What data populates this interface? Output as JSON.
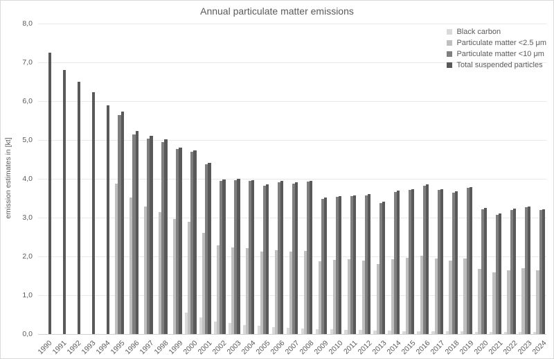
{
  "chart_data": {
    "type": "bar",
    "title": "Annual particulate matter emissions",
    "xlabel": "",
    "ylabel": "emission estimates in [kt]",
    "ylim": [
      0,
      8
    ],
    "y_tick_step": 1,
    "y_tick_labels": [
      "0,0",
      "1,0",
      "2,0",
      "3,0",
      "4,0",
      "5,0",
      "6,0",
      "7,0",
      "8,0"
    ],
    "grid": true,
    "legend_position": "top-right",
    "categories": [
      "1990",
      "1991",
      "1992",
      "1993",
      "1994",
      "1995",
      "1996",
      "1997",
      "1998",
      "1999",
      "2000",
      "2001",
      "2002",
      "2003",
      "2004",
      "2005",
      "2006",
      "2007",
      "2008",
      "2009",
      "2010",
      "2011",
      "2012",
      "2013",
      "2014",
      "2015",
      "2016",
      "2017",
      "2018",
      "2019",
      "2020",
      "2021",
      "2022",
      "2023",
      "2024"
    ],
    "series": [
      {
        "key": "black-carbon",
        "name": "Black carbon",
        "color": "#d9d9d9",
        "values": [
          null,
          null,
          null,
          null,
          null,
          null,
          null,
          null,
          null,
          null,
          0.55,
          0.42,
          0.32,
          0.28,
          0.24,
          0.21,
          0.18,
          0.16,
          0.14,
          0.12,
          0.12,
          0.11,
          0.1,
          0.09,
          0.09,
          0.08,
          0.08,
          0.08,
          0.07,
          0.07,
          0.06,
          0.06,
          0.06,
          0.06,
          0.05
        ]
      },
      {
        "key": "pm2-5",
        "name": "Particulate matter <2.5 μm",
        "color": "#bfbfbf",
        "values": [
          null,
          null,
          null,
          null,
          null,
          3.88,
          3.52,
          3.28,
          3.15,
          2.96,
          2.9,
          2.6,
          2.28,
          2.24,
          2.22,
          2.13,
          2.16,
          2.12,
          2.14,
          1.88,
          1.91,
          1.92,
          1.89,
          1.8,
          1.92,
          1.96,
          2.02,
          1.94,
          1.89,
          1.95,
          1.68,
          1.59,
          1.65,
          1.69,
          1.64
        ]
      },
      {
        "key": "pm10",
        "name": "Particulate matter <10 μm",
        "color": "#7f7f7f",
        "values": [
          null,
          null,
          null,
          null,
          null,
          5.65,
          5.15,
          5.04,
          4.95,
          4.77,
          4.7,
          4.38,
          3.95,
          3.97,
          3.94,
          3.82,
          3.91,
          3.88,
          3.92,
          3.48,
          3.53,
          3.55,
          3.57,
          3.38,
          3.66,
          3.71,
          3.82,
          3.71,
          3.64,
          3.76,
          3.22,
          3.07,
          3.2,
          3.26,
          3.19
        ]
      },
      {
        "key": "tsp",
        "name": "Total suspended particles",
        "color": "#595959",
        "values": [
          7.25,
          6.8,
          6.5,
          6.23,
          5.9,
          5.74,
          5.23,
          5.1,
          5.01,
          4.8,
          4.73,
          4.41,
          3.98,
          4.0,
          3.97,
          3.85,
          3.94,
          3.91,
          3.95,
          3.51,
          3.56,
          3.58,
          3.6,
          3.41,
          3.69,
          3.74,
          3.85,
          3.74,
          3.67,
          3.79,
          3.25,
          3.1,
          3.23,
          3.29,
          3.22
        ]
      }
    ]
  }
}
